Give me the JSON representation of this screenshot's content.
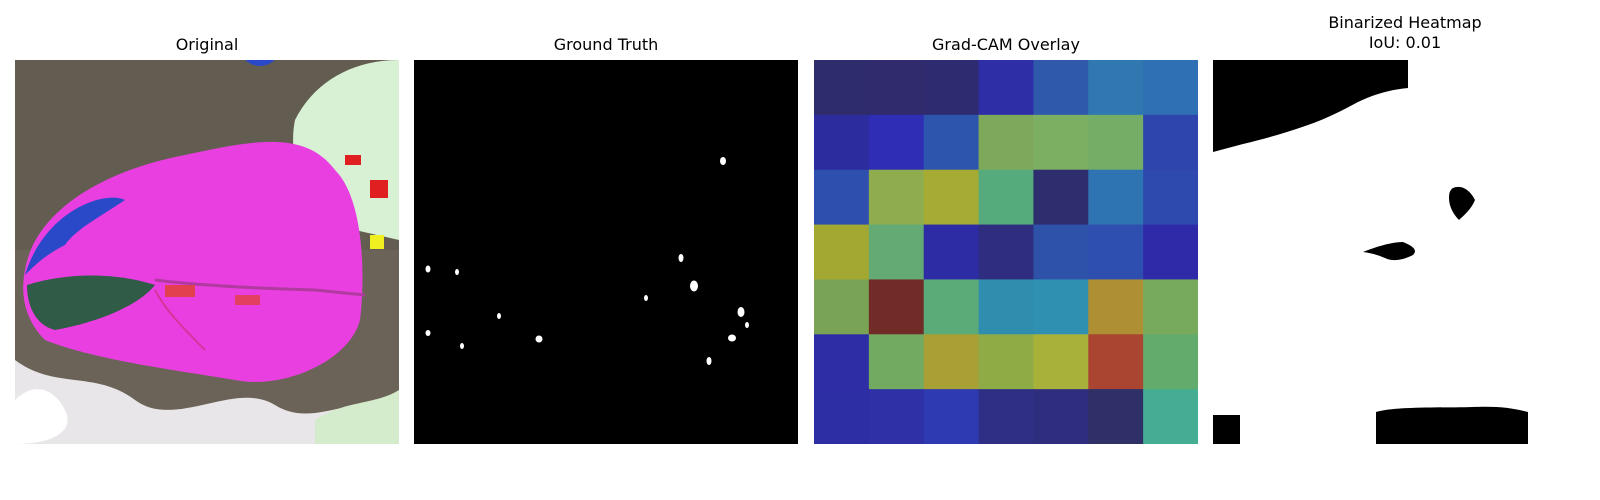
{
  "panels": {
    "original": {
      "title": "Original"
    },
    "ground_truth": {
      "title": "Ground Truth"
    },
    "gradcam": {
      "title": "Grad-CAM Overlay",
      "grid_colors": [
        [
          "#2e2c6a",
          "#2f2b6d",
          "#2f2b70",
          "#2e2ea6",
          "#2f5aac",
          "#2f78b0",
          "#2f6fb3"
        ],
        [
          "#2d2c9e",
          "#2f2db4",
          "#2e55ad",
          "#7fa95a",
          "#7caf62",
          "#74ad65",
          "#2f45ae"
        ],
        [
          "#2e4fae",
          "#8fad4e",
          "#a6ab34",
          "#56ab7d",
          "#2e2e6e",
          "#2f74b2",
          "#2f4aae"
        ],
        [
          "#a3a832",
          "#63aa74",
          "#2d2ca4",
          "#2f2d80",
          "#2e52a8",
          "#2f4fb0",
          "#2f2aa8"
        ],
        [
          "#7aa455",
          "#712c27",
          "#5aab78",
          "#2f8eae",
          "#2f90b2",
          "#af8f33",
          "#78aa5e"
        ],
        [
          "#2e2da6",
          "#73aa62",
          "#a8a035",
          "#8fab45",
          "#a8b23a",
          "#a94531",
          "#61ac6c"
        ],
        [
          "#2e2ea4",
          "#2f2fa6",
          "#2e3ab2",
          "#2f2f86",
          "#2f2d7e",
          "#2f3068",
          "#45ae92"
        ]
      ]
    },
    "binarized": {
      "title_line1": "Binarized Heatmap",
      "title_line2": "IoU: 0.01"
    }
  }
}
